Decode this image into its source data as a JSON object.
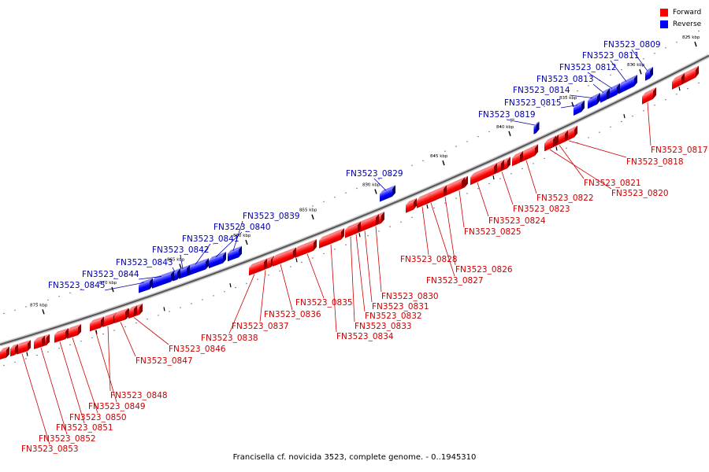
{
  "legend": {
    "forward_label": "Forward",
    "reverse_label": "Reverse",
    "forward_color": "#ff0000",
    "reverse_color": "#0000ff"
  },
  "caption": "Francisella cf. novicida 3523, complete genome. - 0..1945310",
  "scale_ticks": [
    "825 kbp",
    "830 kbp",
    "835 kbp",
    "840 kbp",
    "845 kbp",
    "850 kbp",
    "855 kbp",
    "860 kbp",
    "865 kbp",
    "870 kbp",
    "875 kbp"
  ],
  "genes": [
    {
      "name": "FN3523_0809",
      "strand": "reverse",
      "pos": 822
    },
    {
      "name": "FN3523_0811",
      "strand": "reverse",
      "pos": 795
    },
    {
      "name": "FN3523_0812",
      "strand": "reverse",
      "pos": 777
    },
    {
      "name": "FN3523_0813",
      "strand": "reverse",
      "pos": 766
    },
    {
      "name": "FN3523_0814",
      "strand": "reverse",
      "pos": 752
    },
    {
      "name": "FN3523_0815",
      "strand": "reverse",
      "pos": 733
    },
    {
      "name": "FN3523_0819",
      "strand": "reverse",
      "pos": 679
    },
    {
      "name": "FN3523_0817",
      "strand": "forward",
      "pos": 822
    },
    {
      "name": "FN3523_0818",
      "strand": "forward",
      "pos": 722
    },
    {
      "name": "FN3523_0821",
      "strand": "forward",
      "pos": 710
    },
    {
      "name": "FN3523_0820",
      "strand": "forward",
      "pos": 698
    },
    {
      "name": "FN3523_0822",
      "strand": "forward",
      "pos": 668
    },
    {
      "name": "FN3523_0823",
      "strand": "forward",
      "pos": 637
    },
    {
      "name": "FN3523_0824",
      "strand": "forward",
      "pos": 606
    },
    {
      "name": "FN3523_0825",
      "strand": "forward",
      "pos": 583
    },
    {
      "name": "FN3523_0826",
      "strand": "forward",
      "pos": 565
    },
    {
      "name": "FN3523_0827",
      "strand": "forward",
      "pos": 547
    },
    {
      "name": "FN3523_0828",
      "strand": "forward",
      "pos": 536
    },
    {
      "name": "FN3523_0829",
      "strand": "reverse",
      "pos": 490
    },
    {
      "name": "FN3523_0830",
      "strand": "forward",
      "pos": 477
    },
    {
      "name": "FN3523_0831",
      "strand": "forward",
      "pos": 463
    },
    {
      "name": "FN3523_0832",
      "strand": "forward",
      "pos": 452
    },
    {
      "name": "FN3523_0833",
      "strand": "forward",
      "pos": 445
    },
    {
      "name": "FN3523_0834",
      "strand": "forward",
      "pos": 420
    },
    {
      "name": "FN3523_0835",
      "strand": "forward",
      "pos": 390
    },
    {
      "name": "FN3523_0836",
      "strand": "forward",
      "pos": 356
    },
    {
      "name": "FN3523_0837",
      "strand": "forward",
      "pos": 337
    },
    {
      "name": "FN3523_0838",
      "strand": "forward",
      "pos": 323
    },
    {
      "name": "FN3523_0839",
      "strand": "reverse",
      "pos": 296
    },
    {
      "name": "FN3523_0840",
      "strand": "reverse",
      "pos": 274
    },
    {
      "name": "FN3523_0841",
      "strand": "reverse",
      "pos": 248
    },
    {
      "name": "FN3523_0842",
      "strand": "reverse",
      "pos": 232
    },
    {
      "name": "FN3523_0843",
      "strand": "reverse",
      "pos": 222
    },
    {
      "name": "FN3523_0844",
      "strand": "reverse",
      "pos": 205
    },
    {
      "name": "FN3523_0845",
      "strand": "reverse",
      "pos": 183
    },
    {
      "name": "FN3523_0846",
      "strand": "forward",
      "pos": 170
    },
    {
      "name": "FN3523_0847",
      "strand": "forward",
      "pos": 153
    },
    {
      "name": "FN3523_0848",
      "strand": "forward",
      "pos": 137
    },
    {
      "name": "FN3523_0849",
      "strand": "forward",
      "pos": 121
    },
    {
      "name": "FN3523_0850",
      "strand": "forward",
      "pos": 92
    },
    {
      "name": "FN3523_0851",
      "strand": "forward",
      "pos": 76
    },
    {
      "name": "FN3523_0852",
      "strand": "forward",
      "pos": 52
    },
    {
      "name": "FN3523_0853",
      "strand": "forward",
      "pos": 28
    }
  ]
}
